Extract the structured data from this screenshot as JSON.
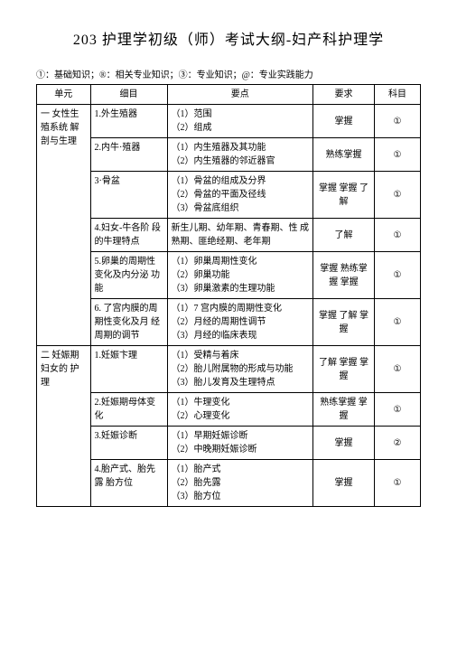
{
  "title": "203 护理学初级（师）考试大纲-妇产科护理学",
  "legend": "①：基础知识；®：相关专业知识；③：专业知识；@：专业实践能力",
  "headers": {
    "unit": "单元",
    "detail": "细目",
    "points": "要点",
    "req": "要求",
    "subj": "科目"
  },
  "units": [
    {
      "name": "一 女性生 殖系统 解剖与生理",
      "items": [
        {
          "detail": "1.外生殖器",
          "points": "（1）范围\n（2）组成",
          "req": "掌握",
          "subj": "①"
        },
        {
          "detail": "2.内牛·殖器",
          "points": "（1）内生殖器及其功能\n（2）内生殖器的邻近器官",
          "req": "熟练掌握",
          "subj": "①"
        },
        {
          "detail": "3·骨盆",
          "points": "（1）骨盆的组成及分界\n（2）骨盆的平面及径线\n（3）骨盆底组织",
          "req": "掌握 掌握 了解",
          "subj": "①"
        },
        {
          "detail": "4.妇女-牛各阶 段的牛理特点",
          "points": "新生儿期、幼年期、青春期、性 成熟期、匪绝经期、老年期",
          "req": "了解",
          "subj": "①"
        },
        {
          "detail": "5.卵巢的周期性 变化及内分泌 功能",
          "points": "（1）卵巢周期性变化\n（2）卵巢功能\n（3）卵巢激素的生理功能",
          "req": "掌握 熟练掌 握 掌握",
          "subj": "①"
        },
        {
          "detail": "6. 了宫内膜的周 期性变化及月 经周期的调节",
          "points": "（1）7 宫内膜的周期性变化\n（2）月经的周期性调节\n（3）月经的临床表现",
          "req": "掌握 了解 掌握",
          "subj": "①"
        }
      ]
    },
    {
      "name": "二 妊娠期 妇女的 护理",
      "items": [
        {
          "detail": "1.妊娠卞理",
          "points": "（1）受精与着床\n（2）胎儿附属物的形成与功能\n（3）胎儿发育及生理特点",
          "req": "了解 掌握 掌握",
          "subj": "①"
        },
        {
          "detail": "2.妊娠期母体变 化",
          "points": "（1）牛理变化\n（2）心理变化",
          "req": "熟练掌握 掌握",
          "subj": "①"
        },
        {
          "detail": "3.妊娠诊断",
          "points": "（1）早期妊娠诊断\n（2）中晚期妊娠诊断",
          "req": "掌握",
          "subj": "②"
        },
        {
          "detail": "4.胎产式、胎先 露 胎方位",
          "points": "（1）胎产式\n（2）胎先露\n（3）胎方位",
          "req": "掌握",
          "subj": "①"
        }
      ]
    }
  ]
}
